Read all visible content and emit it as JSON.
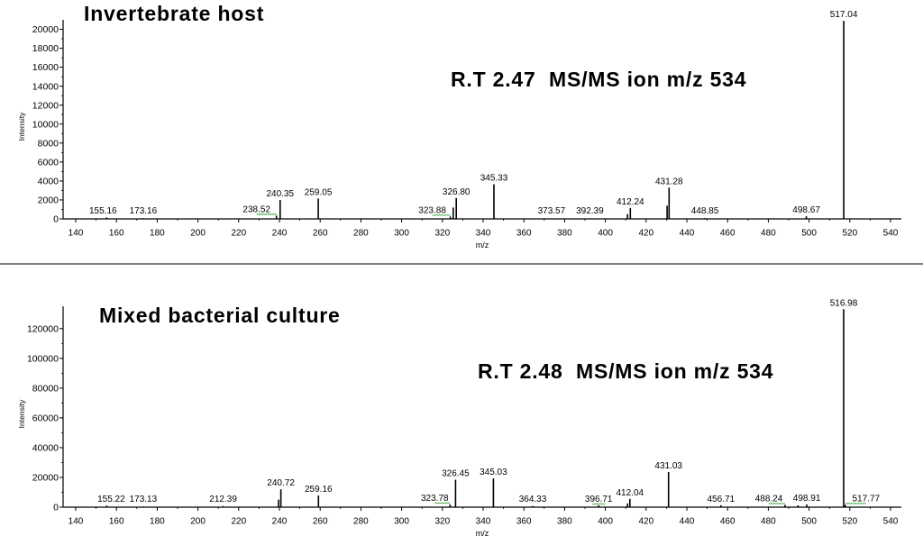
{
  "figure": {
    "background": "#ffffff",
    "divider_color": "#808080",
    "axis_color": "#000000",
    "peak_color": "#000000",
    "marker_color": "#5cb85c"
  },
  "chart_data": [
    {
      "type": "bar",
      "title": "Invertebrate host",
      "subtitle": "R.T 2.47  MS/MS ion m/z 534",
      "xlabel": "m/z",
      "ylabel": "Intensity",
      "xlim": [
        140,
        540
      ],
      "ylim": [
        0,
        21000
      ],
      "grid": false,
      "xticks": [
        140,
        160,
        180,
        200,
        220,
        240,
        260,
        280,
        300,
        320,
        340,
        360,
        380,
        400,
        420,
        440,
        460,
        480,
        500,
        520,
        540
      ],
      "yticks": [
        0,
        2000,
        4000,
        6000,
        8000,
        10000,
        12000,
        14000,
        16000,
        18000,
        20000
      ],
      "peaks": [
        {
          "x": 155.16,
          "y": 150,
          "label": "155.16"
        },
        {
          "x": 173.16,
          "y": 80,
          "label": "173.16"
        },
        {
          "x": 238.52,
          "y": 350,
          "label": "238.52",
          "marked": true
        },
        {
          "x": 240.35,
          "y": 2000,
          "label": "240.35"
        },
        {
          "x": 259.05,
          "y": 2150,
          "label": "259.05"
        },
        {
          "x": 323.88,
          "y": 250,
          "label": "323.88",
          "marked": true
        },
        {
          "x": 325.3,
          "y": 1200
        },
        {
          "x": 326.8,
          "y": 2200,
          "label": "326.80"
        },
        {
          "x": 345.33,
          "y": 3650,
          "label": "345.33"
        },
        {
          "x": 373.57,
          "y": 60,
          "label": "373.57"
        },
        {
          "x": 392.39,
          "y": 60,
          "label": "392.39"
        },
        {
          "x": 410.9,
          "y": 500
        },
        {
          "x": 412.24,
          "y": 1150,
          "label": "412.24"
        },
        {
          "x": 430.3,
          "y": 1400
        },
        {
          "x": 431.28,
          "y": 3300,
          "label": "431.28"
        },
        {
          "x": 448.85,
          "y": 90,
          "label": "448.85"
        },
        {
          "x": 498.67,
          "y": 280,
          "label": "498.67"
        },
        {
          "x": 517.04,
          "y": 20900,
          "label": "517.04"
        }
      ]
    },
    {
      "type": "bar",
      "title": "Mixed bacterial culture",
      "subtitle": "R.T 2.48  MS/MS ion m/z 534",
      "xlabel": "m/z",
      "ylabel": "Intensity",
      "xlim": [
        140,
        540
      ],
      "ylim": [
        0,
        135000
      ],
      "grid": false,
      "xticks": [
        140,
        160,
        180,
        200,
        220,
        240,
        260,
        280,
        300,
        320,
        340,
        360,
        380,
        400,
        420,
        440,
        460,
        480,
        500,
        520,
        540
      ],
      "yticks": [
        0,
        20000,
        40000,
        60000,
        80000,
        100000,
        120000
      ],
      "peaks": [
        {
          "x": 155.22,
          "y": 1000,
          "label": "155.22"
        },
        {
          "x": 173.13,
          "y": 400,
          "label": "173.13"
        },
        {
          "x": 212.39,
          "y": 700,
          "label": "212.39"
        },
        {
          "x": 239.6,
          "y": 5000
        },
        {
          "x": 240.72,
          "y": 12000,
          "label": "240.72"
        },
        {
          "x": 259.16,
          "y": 7800,
          "label": "259.16"
        },
        {
          "x": 323.78,
          "y": 1800,
          "label": "323.78",
          "marked": true
        },
        {
          "x": 326.45,
          "y": 18400,
          "label": "326.45"
        },
        {
          "x": 345.03,
          "y": 19300,
          "label": "345.03"
        },
        {
          "x": 364.33,
          "y": 800,
          "label": "364.33"
        },
        {
          "x": 396.71,
          "y": 1200,
          "label": "396.71",
          "marked": true
        },
        {
          "x": 410.9,
          "y": 2500
        },
        {
          "x": 412.04,
          "y": 5500,
          "label": "412.04"
        },
        {
          "x": 431.03,
          "y": 23600,
          "label": "431.03"
        },
        {
          "x": 456.71,
          "y": 1300,
          "label": "456.71"
        },
        {
          "x": 488.24,
          "y": 1500,
          "label": "488.24",
          "marked": true
        },
        {
          "x": 494.6,
          "y": 1200
        },
        {
          "x": 498.91,
          "y": 1800,
          "label": "498.91"
        },
        {
          "x": 516.98,
          "y": 133000,
          "label": "516.98"
        },
        {
          "x": 517.77,
          "y": 1600,
          "label": "517.77",
          "marked": true
        }
      ]
    }
  ]
}
